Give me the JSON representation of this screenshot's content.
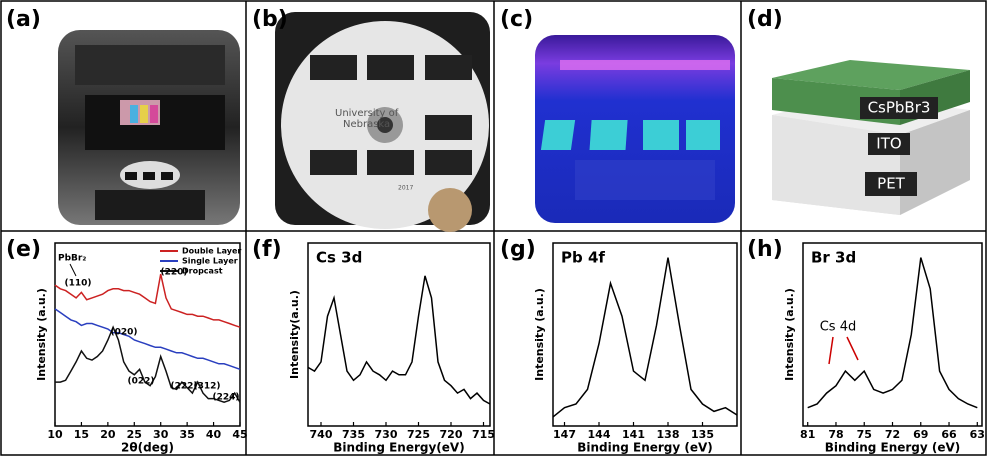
{
  "photos": [
    {
      "label": "(a)"
    },
    {
      "label": "(b)",
      "texts": [
        "University of",
        "Nebraska",
        "2017"
      ]
    },
    {
      "label": "(c)"
    },
    {
      "label": "(d)",
      "texts": [
        "CsPbBr3",
        "ITO",
        "PET"
      ]
    }
  ],
  "chart_data": [
    {
      "type": "line",
      "label": "(e)",
      "xlabel": "2θ(deg)",
      "ylabel": "Intensity (a.u.)",
      "xlim": [
        10,
        45
      ],
      "xticks": [
        10,
        15,
        20,
        25,
        30,
        35,
        40,
        45
      ],
      "ylim": [
        0,
        100
      ],
      "x": [
        10,
        11,
        12,
        13,
        14,
        15,
        16,
        17,
        18,
        19,
        20,
        21,
        22,
        23,
        24,
        25,
        26,
        27,
        28,
        29,
        30,
        31,
        32,
        33,
        34,
        35,
        36,
        37,
        38,
        39,
        40,
        41,
        42,
        43,
        44,
        45
      ],
      "series": [
        {
          "name": "Double Layer",
          "color": "#cc2222",
          "values": [
            77,
            75,
            74,
            72,
            70,
            73,
            69,
            70,
            71,
            72,
            74,
            75,
            75,
            74,
            74,
            73,
            72,
            70,
            68,
            67,
            83,
            70,
            64,
            63,
            62,
            61,
            61,
            60,
            60,
            59,
            58,
            58,
            57,
            56,
            55,
            54
          ]
        },
        {
          "name": "Single Layer",
          "color": "#2a3fbf",
          "values": [
            64,
            62,
            60,
            58,
            57,
            55,
            56,
            56,
            55,
            54,
            53,
            51,
            51,
            50,
            49,
            47,
            46,
            45,
            44,
            43,
            43,
            42,
            41,
            40,
            40,
            39,
            38,
            37,
            37,
            36,
            35,
            34,
            34,
            33,
            32,
            31
          ]
        },
        {
          "name": "Dropcast",
          "color": "#111111",
          "values": [
            24,
            24,
            25,
            30,
            35,
            41,
            37,
            36,
            38,
            41,
            47,
            54,
            47,
            35,
            30,
            28,
            31,
            24,
            22,
            27,
            38,
            30,
            21,
            20,
            24,
            21,
            18,
            24,
            18,
            15,
            15,
            14,
            13,
            14,
            18,
            13
          ]
        }
      ],
      "annotations": [
        "PbBr₂",
        "(110)",
        "(220)",
        "(020)",
        "(022)",
        "(222)",
        "(312)",
        "(224)"
      ]
    },
    {
      "type": "line",
      "label": "(f)",
      "title": "Cs 3d",
      "xlabel": "Binding Energy(eV)",
      "ylabel": "Intensity(a.u.)",
      "xlim": [
        742,
        714
      ],
      "xticks": [
        740,
        735,
        730,
        725,
        720,
        715
      ],
      "ylim": [
        0,
        100
      ],
      "x": [
        742,
        741,
        740,
        739,
        738,
        737,
        736,
        735,
        734,
        733,
        732,
        731,
        730,
        729,
        728,
        727,
        726,
        725,
        724,
        723,
        722,
        721,
        720,
        719,
        718,
        717,
        716,
        715,
        714
      ],
      "series": [
        {
          "color": "#000000",
          "values": [
            32,
            30,
            35,
            60,
            70,
            50,
            30,
            25,
            28,
            35,
            30,
            28,
            25,
            30,
            28,
            28,
            35,
            60,
            82,
            70,
            35,
            25,
            22,
            18,
            20,
            15,
            18,
            14,
            12
          ]
        }
      ]
    },
    {
      "type": "line",
      "label": "(g)",
      "title": "Pb 4f",
      "xlabel": "Binding Energy (eV)",
      "ylabel": "Intensity (a.u.)",
      "xlim": [
        148,
        132
      ],
      "xticks": [
        147,
        144,
        141,
        138,
        135
      ],
      "ylim": [
        0,
        100
      ],
      "x": [
        148,
        147,
        146,
        145,
        144,
        143,
        142,
        141,
        140,
        139,
        138,
        137,
        136,
        135,
        134,
        133,
        132
      ],
      "series": [
        {
          "color": "#000000",
          "values": [
            5,
            10,
            12,
            20,
            45,
            78,
            60,
            30,
            25,
            55,
            92,
            55,
            20,
            12,
            8,
            10,
            6
          ]
        }
      ]
    },
    {
      "type": "line",
      "label": "(h)",
      "title": "Br 3d",
      "xlabel": "Binding Energy (eV)",
      "ylabel": "Intensity (a.u.)",
      "xlim": [
        81.5,
        62.5
      ],
      "xticks": [
        81,
        78,
        75,
        72,
        69,
        66,
        63
      ],
      "ylim": [
        0,
        100
      ],
      "x": [
        81,
        80,
        79,
        78,
        77,
        76,
        75,
        74,
        73,
        72,
        71,
        70,
        69,
        68,
        67,
        66,
        65,
        64,
        63
      ],
      "series": [
        {
          "color": "#000000",
          "values": [
            10,
            12,
            18,
            22,
            30,
            25,
            30,
            20,
            18,
            20,
            25,
            50,
            92,
            75,
            30,
            20,
            15,
            12,
            10
          ]
        }
      ],
      "annotations": [
        "Cs 4d"
      ]
    }
  ]
}
